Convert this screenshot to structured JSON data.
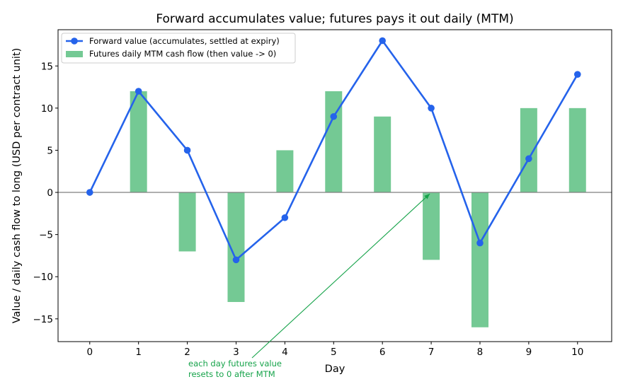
{
  "chart_data": {
    "type": "bar",
    "title": "Forward accumulates value; futures pays it out daily (MTM)",
    "xlabel": "Day",
    "ylabel": "Value / daily cash flow to long (USD per contract unit)",
    "xlim": [
      -0.65,
      10.7
    ],
    "ylim": [
      -17.7,
      19.3
    ],
    "x": [
      0,
      1,
      2,
      3,
      4,
      5,
      6,
      7,
      8,
      9,
      10
    ],
    "x_tick_labels": [
      "0",
      "1",
      "2",
      "3",
      "4",
      "5",
      "6",
      "7",
      "8",
      "9",
      "10"
    ],
    "y_ticks": [
      -15,
      -10,
      -5,
      0,
      5,
      10,
      15
    ],
    "y_tick_labels": [
      "−15",
      "−10",
      "−5",
      "0",
      "5",
      "10",
      "15"
    ],
    "series": [
      {
        "name": "Forward value (accumulates, settled at expiry)",
        "kind": "line",
        "color": "#2563eb",
        "x": [
          0,
          1,
          2,
          3,
          4,
          5,
          6,
          7,
          8,
          9,
          10
        ],
        "values": [
          0,
          12,
          5,
          -8,
          -3,
          9,
          18,
          10,
          -6,
          4,
          14
        ]
      },
      {
        "name": "Futures daily MTM cash flow (then value -> 0)",
        "kind": "bar",
        "color": "#74c994",
        "x": [
          1,
          2,
          3,
          4,
          5,
          6,
          7,
          8,
          9,
          10
        ],
        "values": [
          12,
          -7,
          -13,
          5,
          12,
          9,
          -8,
          -16,
          10,
          10
        ]
      }
    ],
    "zero_line": true,
    "grid": false,
    "legend_position": "top-left",
    "annotation": {
      "text_lines": [
        "each day futures value",
        "resets to 0 after MTM"
      ],
      "arrow_target_x": 7,
      "arrow_target_y": 0,
      "color": "#16a34a"
    }
  }
}
